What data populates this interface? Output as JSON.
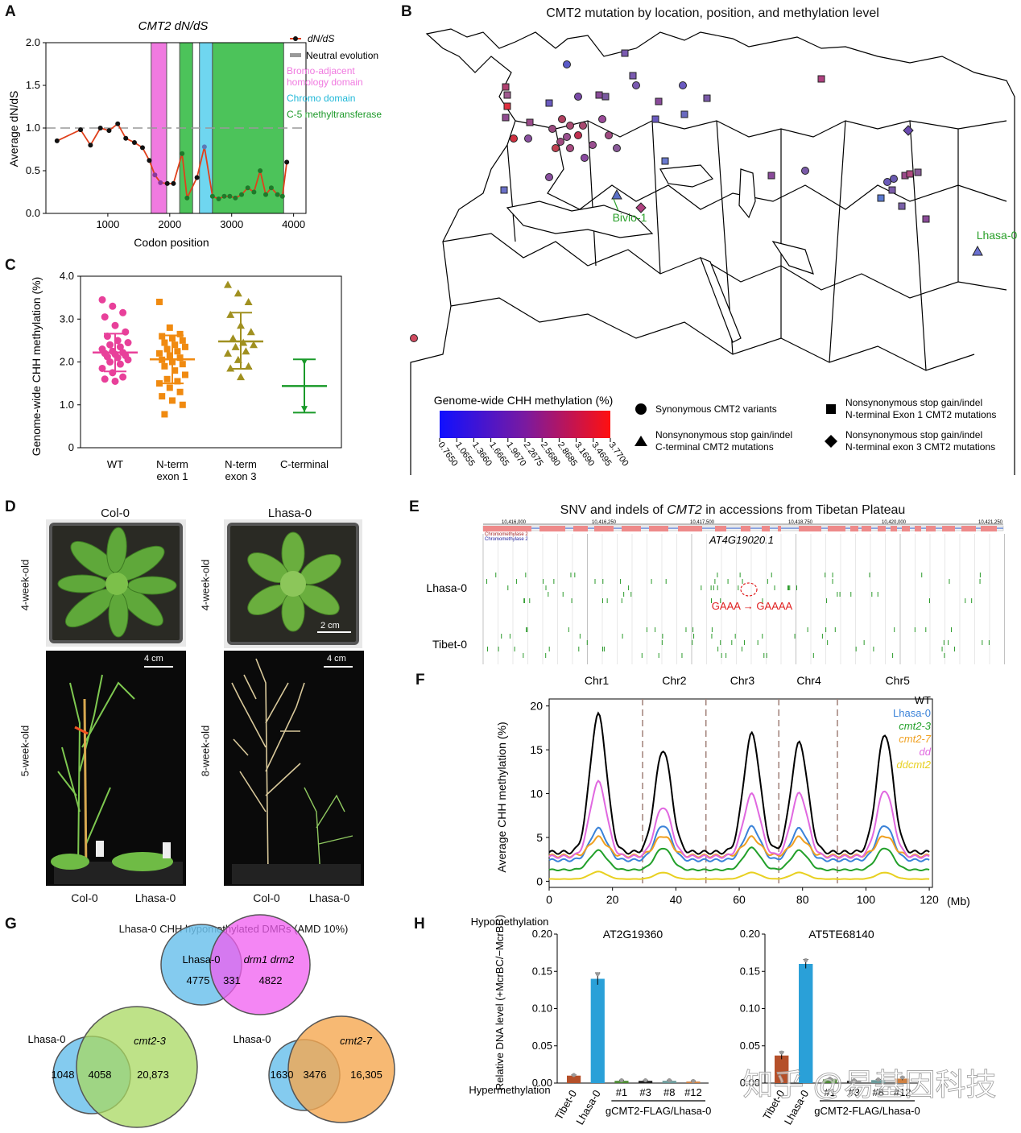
{
  "panels": {
    "a": {
      "label": "A",
      "title": "CMT2 dN/dS",
      "ylabel": "Average dN/dS",
      "xlabel": "Codon position",
      "legend": [
        "dN/dS",
        "Neutral evolution",
        "Bromo-adjacent homology domain",
        "Chromo domain",
        "C-5 methyltransferase"
      ],
      "colors": {
        "line": "#e0401c",
        "bah": "#f07ae0",
        "chromo": "#6fd6f0",
        "c5": "#4cc35a",
        "neutral": "#999999"
      }
    },
    "b": {
      "label": "B",
      "title": "CMT2 mutation by location, position, and methylation level",
      "annotations": [
        "Bivio-1",
        "Lhasa-0"
      ],
      "colorbar_title": "Genome-wide CHH methylation (%)",
      "colorbar_ticks": [
        "0.7650",
        "1.0655",
        "1.3660",
        "1.6665",
        "1.9670",
        "2.2675",
        "2.5680",
        "2.8685",
        "3.1690",
        "3.4695",
        "3.7700"
      ],
      "legend": [
        {
          "shape": "circle",
          "text": "Synonymous CMT2 variants"
        },
        {
          "shape": "triangle",
          "text": "Nonsynonymous stop gain/indel C-terminal CMT2 mutations"
        },
        {
          "shape": "square",
          "text": "Nonsynonymous stop gain/indel N-terminal Exon 1 CMT2 mutations"
        },
        {
          "shape": "diamond",
          "text": "Nonsynonymous stop gain/indel N-terminal exon 3 CMT2 mutations"
        }
      ]
    },
    "c": {
      "label": "C",
      "ylabel": "Genome-wide CHH methylation (%)",
      "groups": [
        "WT",
        "N-term exon 1",
        "N-term exon 3",
        "C-terminal"
      ],
      "colors": [
        "#e8409a",
        "#f08a10",
        "#a09020",
        "#1a9a2a"
      ]
    },
    "d": {
      "label": "D",
      "col_titles": [
        "Col-0",
        "Lhasa-0"
      ],
      "ages": [
        "4-week-old",
        "4-week-old",
        "5-week-old",
        "8-week-old"
      ],
      "scalebars": [
        "2 cm",
        "4 cm",
        "4 cm"
      ],
      "bottom_labels": [
        "Col-0",
        "Lhasa-0",
        "Col-0",
        "Lhasa-0"
      ]
    },
    "e": {
      "label": "E",
      "title_pre": "SNV and indels of ",
      "title_gene": "CMT2",
      "title_post": " in accessions from Tibetan Plateau",
      "gene_id": "AT4G19020.1",
      "coords": [
        "10,416,000",
        "10,416,250",
        "10,417,500",
        "10,418,750",
        "10,420,000",
        "10,421,250"
      ],
      "tracks": [
        "Lhasa-0",
        "Tibet-0"
      ],
      "mutation": "GAAA → GAAAA",
      "transcript_names": [
        "Chromomethylase 2",
        "Chromomethylase 2"
      ]
    },
    "f": {
      "label": "F",
      "ylabel": "Average CHH methylation (%)",
      "xunit": "(Mb)",
      "chromosomes": [
        "Chr1",
        "Chr2",
        "Chr3",
        "Chr4",
        "Chr5"
      ],
      "series": [
        {
          "name": "WT",
          "color": "#000000"
        },
        {
          "name": "Lhasa-0",
          "color": "#3a82d8"
        },
        {
          "name": "cmt2-3",
          "color": "#22a02a"
        },
        {
          "name": "cmt2-7",
          "color": "#f0a020"
        },
        {
          "name": "dd",
          "color": "#e068e0"
        },
        {
          "name": "ddcmt2",
          "color": "#e8d020"
        }
      ]
    },
    "g": {
      "label": "G",
      "title": "Lhasa-0 CHH hypomethylated DMRs (AMD 10%)",
      "venns": [
        {
          "a": "Lhasa-0",
          "b": "drm1 drm2",
          "only_a": "4775",
          "both": "331",
          "only_b": "4822"
        },
        {
          "a": "Lhasa-0",
          "b": "cmt2-3",
          "only_a": "1048",
          "both": "4058",
          "only_b": "20,873"
        },
        {
          "a": "Lhasa-0",
          "b": "cmt2-7",
          "only_a": "1630",
          "both": "3476",
          "only_b": "16,305"
        }
      ]
    },
    "h": {
      "label": "H",
      "top_label": "Hypomethylation",
      "bottom_label": "Hypermethylation",
      "ylabel": "Relative DNA level (+McrBC/−McrBC)",
      "group_label": "gCMT2-FLAG/Lhasa-0",
      "watermark": "知乎 @易基因科技",
      "plots": [
        {
          "title": "AT2G19360"
        },
        {
          "title": "AT5TE68140"
        }
      ]
    }
  },
  "chart_data": [
    {
      "type": "line",
      "title": "CMT2 dN/dS",
      "xlabel": "Codon position",
      "ylabel": "Average dN/dS",
      "xlim": [
        0,
        4200
      ],
      "ylim": [
        0,
        2.0
      ],
      "xticks": [
        1000,
        2000,
        3000,
        4000
      ],
      "yticks": [
        0.0,
        0.5,
        1.0,
        1.5,
        2.0
      ],
      "series": [
        {
          "name": "dN/dS",
          "x": [
            180,
            560,
            720,
            880,
            1020,
            1160,
            1290,
            1430,
            1560,
            1670,
            1760,
            1850,
            1960,
            2060,
            2200,
            2280,
            2440,
            2560,
            2690,
            2790,
            2880,
            2970,
            3060,
            3160,
            3260,
            3360,
            3460,
            3550,
            3640,
            3740,
            3820,
            3890
          ],
          "y": [
            0.85,
            0.98,
            0.8,
            1.0,
            0.97,
            1.05,
            0.88,
            0.83,
            0.77,
            0.62,
            0.45,
            0.36,
            0.35,
            0.35,
            0.7,
            0.18,
            0.42,
            0.78,
            0.2,
            0.17,
            0.2,
            0.2,
            0.18,
            0.22,
            0.3,
            0.25,
            0.5,
            0.22,
            0.3,
            0.22,
            0.2,
            0.6
          ]
        }
      ],
      "neutral": 1.0,
      "domains": [
        {
          "name": "Bromo-adjacent homology domain",
          "start": 1700,
          "end": 1950
        },
        {
          "name": "C-5 methyltransferase",
          "start": 2160,
          "end": 2370
        },
        {
          "name": "Chromo domain",
          "start": 2480,
          "end": 2690
        },
        {
          "name": "C-5 methyltransferase",
          "start": 2690,
          "end": 3840
        }
      ]
    },
    {
      "type": "scatter",
      "ylabel": "Genome-wide CHH methylation (%)",
      "categories": [
        "WT",
        "N-term exon 1",
        "N-term exon 3",
        "C-terminal"
      ],
      "ylim": [
        0,
        4.0
      ],
      "yticks": [
        0,
        1.0,
        2.0,
        3.0,
        4.0
      ],
      "summary": [
        {
          "mean": 2.22,
          "sd_low": 1.78,
          "sd_high": 2.66
        },
        {
          "mean": 2.06,
          "sd_low": 1.5,
          "sd_high": 2.62
        },
        {
          "mean": 2.48,
          "sd_low": 1.84,
          "sd_high": 3.15
        },
        {
          "mean": 1.44,
          "sd_low": 0.82,
          "sd_high": 2.06
        }
      ],
      "points": [
        [
          3.45,
          3.3,
          3.15,
          3.05,
          2.85,
          2.7,
          2.6,
          2.5,
          2.45,
          2.4,
          2.35,
          2.3,
          2.25,
          2.22,
          2.2,
          2.18,
          2.15,
          2.12,
          2.1,
          2.05,
          2.0,
          1.95,
          1.85,
          1.75,
          1.65,
          1.6,
          1.55
        ],
        [
          3.4,
          2.8,
          2.65,
          2.6,
          2.55,
          2.5,
          2.45,
          2.4,
          2.35,
          2.3,
          2.25,
          2.2,
          2.15,
          2.1,
          2.05,
          2.0,
          1.95,
          1.9,
          1.8,
          1.7,
          1.6,
          1.55,
          1.5,
          1.4,
          1.3,
          1.2,
          1.1,
          1.0,
          0.78
        ],
        [
          3.8,
          3.6,
          3.4,
          3.1,
          2.85,
          2.7,
          2.55,
          2.45,
          2.4,
          2.35,
          2.25,
          2.2,
          2.05,
          1.9,
          1.85,
          1.65
        ],
        [
          2.0,
          0.9
        ]
      ]
    },
    {
      "type": "line",
      "ylabel": "Average CHH methylation (%)",
      "xlim": [
        0,
        121
      ],
      "ylim": [
        0,
        20
      ],
      "xticks": [
        0,
        20,
        40,
        60,
        80,
        100,
        120
      ],
      "yticks": [
        0,
        5,
        10,
        15,
        20
      ],
      "chromosome_boundaries": [
        29.5,
        49.5,
        72.5,
        91.0
      ],
      "series": [
        {
          "name": "WT",
          "peaks": [
            [
              15.5,
              19.0
            ],
            [
              36,
              15.0
            ],
            [
              64,
              16.8
            ],
            [
              79,
              15.8
            ],
            [
              106,
              16.8
            ]
          ],
          "base": 3.3
        },
        {
          "name": "Lhasa-0",
          "peaks": [
            [
              15.5,
              6.0
            ],
            [
              36,
              6.4
            ],
            [
              64,
              6.2
            ],
            [
              79,
              6.0
            ],
            [
              106,
              6.4
            ]
          ],
          "base": 2.4
        },
        {
          "name": "cmt2-3",
          "peaks": [
            [
              15.5,
              3.5
            ],
            [
              36,
              3.8
            ],
            [
              64,
              3.8
            ],
            [
              79,
              3.5
            ],
            [
              106,
              3.8
            ]
          ],
          "base": 1.3
        },
        {
          "name": "cmt2-7",
          "peaks": [
            [
              15.5,
              5.0
            ],
            [
              36,
              5.2
            ],
            [
              64,
              5.0
            ],
            [
              79,
              5.0
            ],
            [
              106,
              5.2
            ]
          ],
          "base": 2.9
        },
        {
          "name": "dd",
          "peaks": [
            [
              15.5,
              11.3
            ],
            [
              36,
              8.5
            ],
            [
              64,
              9.9
            ],
            [
              79,
              10.0
            ],
            [
              106,
              10.4
            ]
          ],
          "base": 2.8
        },
        {
          "name": "ddcmt2",
          "peaks": [
            [
              15.5,
              1.1
            ],
            [
              36,
              1.0
            ],
            [
              64,
              1.0
            ],
            [
              79,
              1.0
            ],
            [
              106,
              1.0
            ]
          ],
          "base": 0.25
        }
      ]
    },
    {
      "type": "bar",
      "title": "AT2G19360",
      "categories": [
        "Tibet-0",
        "Lhasa-0",
        "#1",
        "#3",
        "#8",
        "#12"
      ],
      "values": [
        0.01,
        0.14,
        0.003,
        0.003,
        0.003,
        0.002
      ],
      "errors": [
        0.001,
        0.008,
        0.001,
        0.001,
        0.001,
        0.001
      ],
      "colors": [
        "#b5502a",
        "#2aa0d8",
        "#4a8a30",
        "#202020",
        "#6a9a9a",
        "#d08040"
      ],
      "ylim": [
        0,
        0.2
      ],
      "yticks": [
        "0.00",
        "0.05",
        "0.10",
        "0.15",
        "0.20"
      ]
    },
    {
      "type": "bar",
      "title": "AT5TE68140",
      "categories": [
        "Tibet-0",
        "Lhasa-0",
        "#1",
        "#3",
        "#8",
        "#12"
      ],
      "values": [
        0.037,
        0.16,
        0.005,
        0.003,
        0.004,
        0.006
      ],
      "errors": [
        0.005,
        0.006,
        0.001,
        0.001,
        0.001,
        0.002
      ],
      "colors": [
        "#b5502a",
        "#2aa0d8",
        "#4a8a30",
        "#202020",
        "#6a9a9a",
        "#d08040"
      ],
      "ylim": [
        0,
        0.2
      ],
      "yticks": [
        "0.00",
        "0.05",
        "0.10",
        "0.15",
        "0.20"
      ]
    }
  ]
}
